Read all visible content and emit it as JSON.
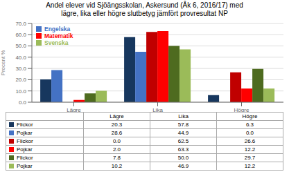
{
  "chart_data": {
    "type": "bar",
    "title": "Andel elever vid Sjöängsskolan, Askersund (Åk 6, 2016/17) med\nlägre, lika eller högre slutbetyg jämfört provresultat NP",
    "y_label": "Procent %",
    "categories": [
      "Lägre",
      "Lika",
      "Högre"
    ],
    "series": [
      {
        "name": "Flickor",
        "color": "#17375e",
        "values": [
          20.3,
          57.8,
          6.3
        ],
        "value_labels": [
          "20.3",
          "57.8",
          "6.3"
        ]
      },
      {
        "name": "Pojkar",
        "color": "#4472c4",
        "values": [
          28.6,
          44.9,
          0.0
        ],
        "value_labels": [
          "28.6",
          "44.9",
          "0.0"
        ]
      },
      {
        "name": "Flickor",
        "color": "#c00000",
        "values": [
          0.0,
          62.5,
          26.6
        ],
        "value_labels": [
          "0.0",
          "62.5",
          "26.6"
        ]
      },
      {
        "name": "Pojkar",
        "color": "#ff0000",
        "values": [
          2.0,
          63.3,
          12.2
        ],
        "value_labels": [
          "2.0",
          "63.3",
          "12.2"
        ]
      },
      {
        "name": "Flickor",
        "color": "#4e6b1f",
        "values": [
          7.8,
          50.0,
          29.7
        ],
        "value_labels": [
          "7.8",
          "50.0",
          "29.7"
        ]
      },
      {
        "name": "Pojkar",
        "color": "#9bbb59",
        "values": [
          10.2,
          46.9,
          12.2
        ],
        "value_labels": [
          "10.2",
          "46.9",
          "12.2"
        ]
      }
    ],
    "legend_entries": [
      {
        "name": "Engelska",
        "color": "#4472c4"
      },
      {
        "name": "Matematik",
        "color": "#ff0000"
      },
      {
        "name": "Svenska",
        "color": "#9bbb59"
      }
    ],
    "legend": "upper left",
    "ylim": [
      0,
      70
    ],
    "yticks": [
      {
        "value": 0,
        "label": "0.0"
      },
      {
        "value": 10,
        "label": "10.0"
      },
      {
        "value": 20,
        "label": "20.0"
      },
      {
        "value": 30,
        "label": "30.0"
      },
      {
        "value": 40,
        "label": "40.0"
      },
      {
        "value": 50,
        "label": "50.0"
      },
      {
        "value": 60,
        "label": "60.0"
      },
      {
        "value": 70,
        "label": "70.0"
      }
    ],
    "grid": true
  }
}
